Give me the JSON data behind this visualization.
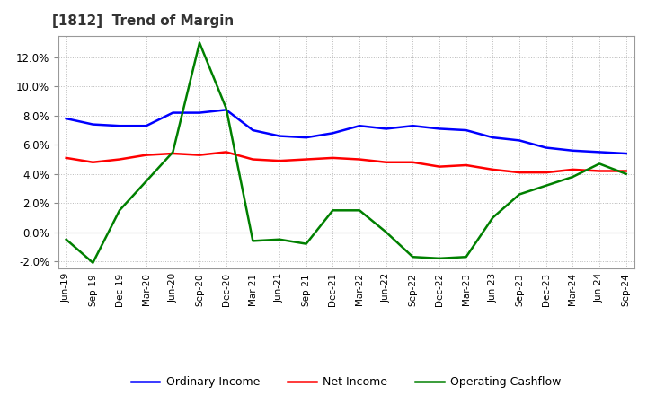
{
  "title": "[1812]  Trend of Margin",
  "x_labels": [
    "Jun-19",
    "Sep-19",
    "Dec-19",
    "Mar-20",
    "Jun-20",
    "Sep-20",
    "Dec-20",
    "Mar-21",
    "Jun-21",
    "Sep-21",
    "Dec-21",
    "Mar-22",
    "Jun-22",
    "Sep-22",
    "Dec-22",
    "Mar-23",
    "Jun-23",
    "Sep-23",
    "Dec-23",
    "Mar-24",
    "Jun-24",
    "Sep-24"
  ],
  "ordinary_income": [
    7.8,
    7.4,
    7.3,
    7.3,
    8.2,
    8.2,
    8.4,
    7.0,
    6.6,
    6.5,
    6.8,
    7.3,
    7.1,
    7.3,
    7.1,
    7.0,
    6.5,
    6.3,
    5.8,
    5.6,
    5.5,
    5.4
  ],
  "net_income": [
    5.1,
    4.8,
    5.0,
    5.3,
    5.4,
    5.3,
    5.5,
    5.0,
    4.9,
    5.0,
    5.1,
    5.0,
    4.8,
    4.8,
    4.5,
    4.6,
    4.3,
    4.1,
    4.1,
    4.3,
    4.2,
    4.2
  ],
  "operating_cashflow": [
    -0.5,
    -2.1,
    1.5,
    3.5,
    5.5,
    13.0,
    8.5,
    -0.6,
    -0.5,
    -0.8,
    1.5,
    1.5,
    0.0,
    -1.7,
    -1.8,
    -1.7,
    1.0,
    2.6,
    3.2,
    3.8,
    4.7,
    4.0
  ],
  "ylim": [
    -2.5,
    13.5
  ],
  "yticks": [
    -2.0,
    0.0,
    2.0,
    4.0,
    6.0,
    8.0,
    10.0,
    12.0
  ],
  "line_color_ordinary": "#0000FF",
  "line_color_net": "#FF0000",
  "line_color_cashflow": "#008000",
  "background_color": "#FFFFFF",
  "grid_color": "#BBBBBB",
  "legend_labels": [
    "Ordinary Income",
    "Net Income",
    "Operating Cashflow"
  ]
}
